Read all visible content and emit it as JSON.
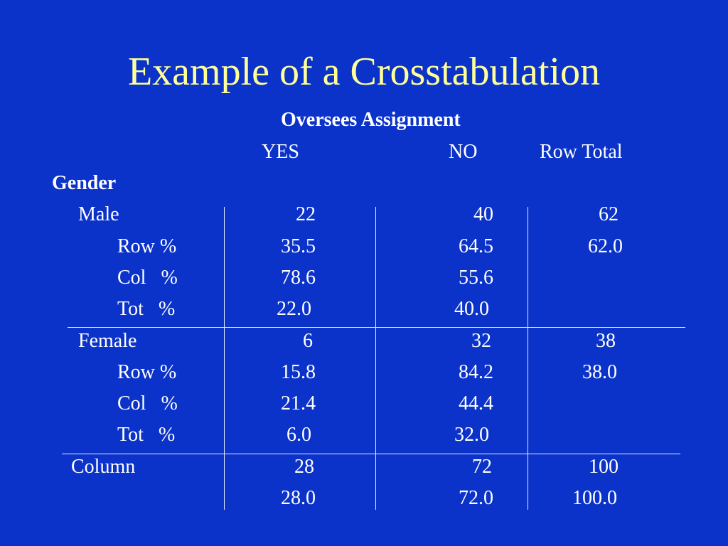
{
  "slide": {
    "title": "Example of a Crosstabulation"
  },
  "table": {
    "column_variable": "Oversees Assignment",
    "row_variable": "Gender",
    "column_headers": [
      "YES",
      "NO",
      "Row Total"
    ],
    "groups": [
      {
        "label": "Male",
        "counts": [
          "22",
          "40",
          "62"
        ],
        "row_pct_label": "Row %",
        "row_pct": [
          "35.5",
          "64.5",
          "62.0"
        ],
        "col_pct_label": "Col   %",
        "col_pct": [
          "78.6",
          "55.6"
        ],
        "tot_pct_label": "Tot   %",
        "tot_pct": [
          "22.0",
          "40.0"
        ]
      },
      {
        "label": "Female",
        "counts": [
          "6",
          "32",
          "38"
        ],
        "row_pct_label": "Row %",
        "row_pct": [
          "15.8",
          "84.2",
          "38.0"
        ],
        "col_pct_label": "Col   %",
        "col_pct": [
          "21.4",
          "44.4"
        ],
        "tot_pct_label": "Tot   %",
        "tot_pct": [
          "6.0",
          "32.0"
        ]
      }
    ],
    "column_total": {
      "label": "Column",
      "counts": [
        "28",
        "72",
        "100"
      ],
      "pct": [
        "28.0",
        "72.0",
        "100.0"
      ]
    }
  },
  "colors": {
    "background": "#0b33c9",
    "title": "#ffff99",
    "text": "#ffffff"
  }
}
